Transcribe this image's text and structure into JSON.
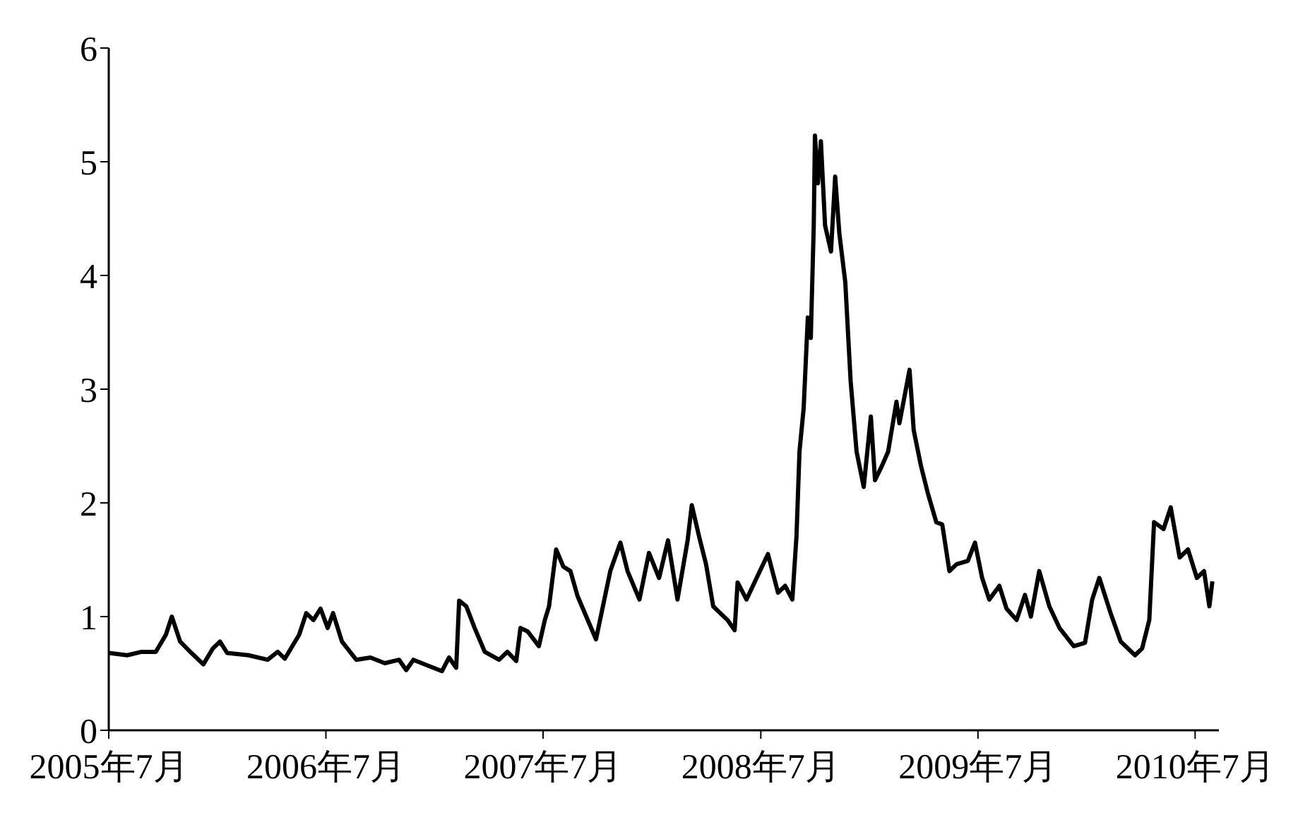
{
  "chart_data": {
    "type": "line",
    "x": [
      "2005-07-01",
      "2005-08-01",
      "2005-08-25",
      "2005-09-18",
      "2005-10-05",
      "2005-10-15",
      "2005-10-29",
      "2005-11-17",
      "2005-12-07",
      "2005-12-23",
      "2006-01-04",
      "2006-01-16",
      "2006-02-21",
      "2006-03-25",
      "2006-04-11",
      "2006-04-23",
      "2006-05-17",
      "2006-05-29",
      "2006-06-10",
      "2006-06-22",
      "2006-07-04",
      "2006-07-13",
      "2006-07-28",
      "2006-08-21",
      "2006-09-14",
      "2006-10-08",
      "2006-11-01",
      "2006-11-13",
      "2006-11-25",
      "2006-12-19",
      "2007-01-12",
      "2007-01-24",
      "2007-02-05",
      "2007-02-10",
      "2007-02-22",
      "2007-03-08",
      "2007-03-25",
      "2007-04-18",
      "2007-05-02",
      "2007-05-17",
      "2007-05-24",
      "2007-06-05",
      "2007-06-24",
      "2007-07-04",
      "2007-07-11",
      "2007-07-23",
      "2007-08-04",
      "2007-08-16",
      "2007-08-28",
      "2007-09-28",
      "2007-10-08",
      "2007-10-22",
      "2007-11-08",
      "2007-11-20",
      "2007-12-10",
      "2007-12-26",
      "2008-01-12",
      "2008-01-27",
      "2008-02-12",
      "2008-02-29",
      "2008-03-07",
      "2008-03-19",
      "2008-03-31",
      "2008-04-12",
      "2008-05-06",
      "2008-05-18",
      "2008-05-23",
      "2008-06-07",
      "2008-06-24",
      "2008-07-13",
      "2008-07-30",
      "2008-08-11",
      "2008-08-23",
      "2008-08-30",
      "2008-09-04",
      "2008-09-11",
      "2008-09-18",
      "2008-09-23",
      "2008-09-28",
      "2008-09-30",
      "2008-10-05",
      "2008-10-10",
      "2008-10-17",
      "2008-10-27",
      "2008-11-03",
      "2008-11-10",
      "2008-11-20",
      "2008-11-29",
      "2008-12-09",
      "2008-12-21",
      "2009-01-02",
      "2009-01-09",
      "2009-01-21",
      "2009-01-31",
      "2009-02-14",
      "2009-02-19",
      "2009-03-08",
      "2009-03-15",
      "2009-03-27",
      "2009-04-08",
      "2009-04-22",
      "2009-05-02",
      "2009-05-14",
      "2009-05-26",
      "2009-06-14",
      "2009-06-26",
      "2009-07-08",
      "2009-07-20",
      "2009-08-06",
      "2009-08-18",
      "2009-09-04",
      "2009-09-18",
      "2009-09-28",
      "2009-10-12",
      "2009-10-29",
      "2009-11-15",
      "2009-12-09",
      "2009-12-28",
      "2010-01-09",
      "2010-01-21",
      "2010-02-09",
      "2010-02-26",
      "2010-03-22",
      "2010-04-03",
      "2010-04-15",
      "2010-04-23",
      "2010-05-09",
      "2010-05-21",
      "2010-06-05",
      "2010-06-19",
      "2010-07-04",
      "2010-07-16",
      "2010-07-25",
      "2010-07-30"
    ],
    "series": [
      {
        "color": "#000000",
        "values": [
          0.68,
          0.66,
          0.69,
          0.69,
          0.84,
          1.0,
          0.78,
          0.68,
          0.58,
          0.72,
          0.78,
          0.68,
          0.66,
          0.62,
          0.69,
          0.63,
          0.84,
          1.03,
          0.97,
          1.07,
          0.9,
          1.03,
          0.78,
          0.62,
          0.64,
          0.59,
          0.62,
          0.53,
          0.62,
          0.57,
          0.52,
          0.64,
          0.55,
          1.14,
          1.09,
          0.9,
          0.69,
          0.62,
          0.69,
          0.61,
          0.9,
          0.87,
          0.74,
          0.97,
          1.09,
          1.59,
          1.44,
          1.4,
          1.18,
          0.8,
          1.05,
          1.4,
          1.65,
          1.4,
          1.15,
          1.56,
          1.34,
          1.67,
          1.15,
          1.67,
          1.98,
          1.71,
          1.46,
          1.09,
          0.97,
          0.88,
          1.3,
          1.15,
          1.34,
          1.55,
          1.21,
          1.27,
          1.15,
          1.71,
          2.45,
          2.83,
          3.63,
          3.45,
          4.44,
          5.23,
          4.81,
          5.18,
          4.44,
          4.21,
          4.87,
          4.37,
          3.94,
          3.07,
          2.45,
          2.14,
          2.76,
          2.2,
          2.33,
          2.45,
          2.89,
          2.7,
          3.17,
          2.64,
          2.33,
          2.08,
          1.83,
          1.81,
          1.4,
          1.46,
          1.49,
          1.65,
          1.34,
          1.15,
          1.27,
          1.07,
          0.97,
          1.19,
          1.0,
          1.4,
          1.09,
          0.9,
          0.74,
          0.77,
          1.15,
          1.34,
          1.03,
          0.78,
          0.66,
          0.72,
          0.97,
          1.83,
          1.77,
          1.96,
          1.52,
          1.59,
          1.34,
          1.4,
          1.09,
          1.31
        ]
      }
    ],
    "xlim": [
      "2005-07-01",
      "2010-08-10"
    ],
    "xticks": [
      {
        "value": "2005-07-01",
        "label": "2005年7月"
      },
      {
        "value": "2006-07-01",
        "label": "2006年7月"
      },
      {
        "value": "2007-07-01",
        "label": "2007年7月"
      },
      {
        "value": "2008-07-01",
        "label": "2008年7月"
      },
      {
        "value": "2009-07-01",
        "label": "2009年7月"
      },
      {
        "value": "2010-07-01",
        "label": "2010年7月"
      }
    ],
    "ylim": [
      0,
      6
    ],
    "yticks": [
      0,
      1,
      2,
      3,
      4,
      5,
      6
    ],
    "grid": false,
    "legend": false,
    "marker": "none",
    "line_style": "solid"
  }
}
